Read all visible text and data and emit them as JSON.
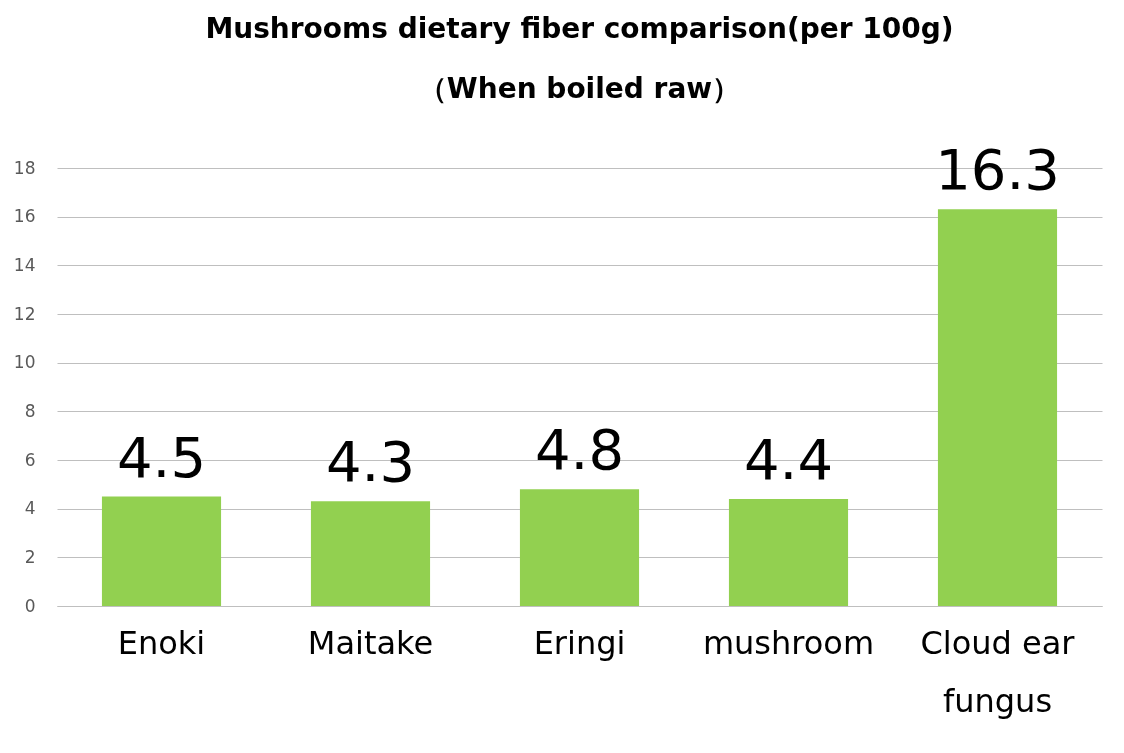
{
  "chart_data": {
    "type": "bar",
    "title": [
      "Mushrooms dietary fiber comparison(per 100g)",
      "（When boiled raw）"
    ],
    "categories": [
      "Enoki",
      "Maitake",
      "Eringi",
      "mushroom",
      "Cloud ear fungus"
    ],
    "values": [
      4.5,
      4.3,
      4.8,
      4.4,
      16.3
    ],
    "color": "#92d050",
    "ylim": [
      0,
      18
    ],
    "yticks": [
      0,
      2,
      4,
      6,
      8,
      10,
      12,
      14,
      16,
      18
    ],
    "grid": "y",
    "data_labels": true
  }
}
